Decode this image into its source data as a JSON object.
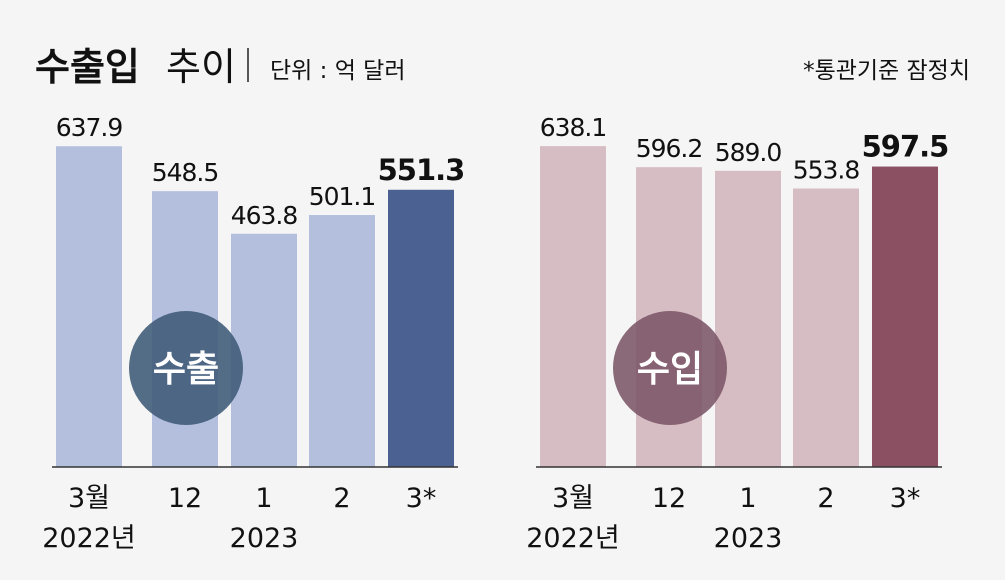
{
  "header": {
    "title": "수출입",
    "title_light": "추이",
    "unit": "단위 : 억 달러",
    "note": "*통관기준 잠정치"
  },
  "chart_data": [
    {
      "type": "bar",
      "label": "수출",
      "label_color": "#3e5a78",
      "categories": [
        "3월",
        "12",
        "1",
        "2",
        "3*"
      ],
      "sublabels": [
        "2022년",
        null,
        "2023",
        null,
        null
      ],
      "values": [
        637.9,
        548.5,
        463.8,
        501.1,
        551.3
      ],
      "value_labels": [
        "637.9",
        "548.5",
        "463.8",
        "501.1",
        "551.3"
      ],
      "colors": [
        "#b3bfdd",
        "#b3bfdd",
        "#b3bfdd",
        "#b3bfdd",
        "#4a6191"
      ],
      "ylim": [
        0,
        700
      ]
    },
    {
      "type": "bar",
      "label": "수입",
      "label_color": "#7b5567",
      "categories": [
        "3월",
        "12",
        "1",
        "2",
        "3*"
      ],
      "sublabels": [
        "2022년",
        null,
        "2023",
        null,
        null
      ],
      "values": [
        638.1,
        596.2,
        589.0,
        553.8,
        597.5
      ],
      "value_labels": [
        "638.1",
        "596.2",
        "589.0",
        "553.8",
        "597.5"
      ],
      "colors": [
        "#d6bcc3",
        "#d6bcc3",
        "#d6bcc3",
        "#d6bcc3",
        "#8b5162"
      ],
      "ylim": [
        0,
        700
      ]
    }
  ]
}
